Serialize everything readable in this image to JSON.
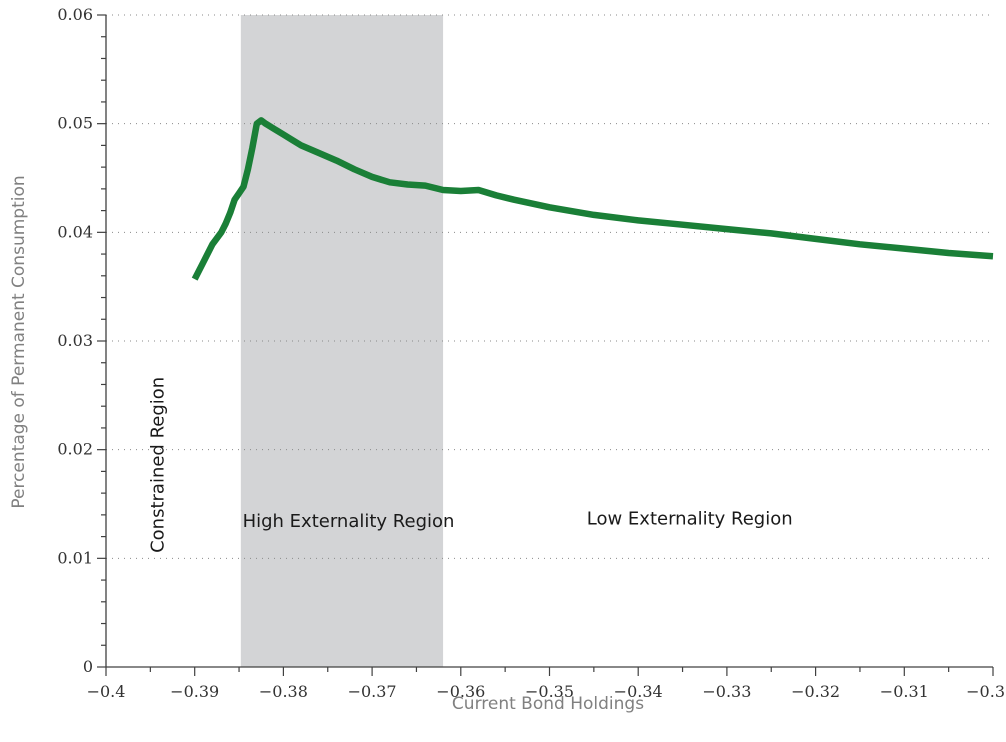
{
  "chart_data": {
    "type": "line",
    "title": "",
    "xlabel": "Current Bond Holdings",
    "ylabel": "Percentage of Permanent Consumption",
    "xlim": [
      -0.4,
      -0.3
    ],
    "ylim": [
      0,
      0.06
    ],
    "x_ticks": [
      -0.4,
      -0.39,
      -0.38,
      -0.37,
      -0.36,
      -0.35,
      -0.34,
      -0.33,
      -0.32,
      -0.31,
      -0.3
    ],
    "x_tick_labels": [
      "−0.4",
      "−0.39",
      "−0.38",
      "−0.37",
      "−0.36",
      "−0.35",
      "−0.34",
      "−0.33",
      "−0.32",
      "−0.31",
      "−0.3"
    ],
    "y_ticks": [
      0,
      0.01,
      0.02,
      0.03,
      0.04,
      0.05,
      0.06
    ],
    "y_tick_labels": [
      "0",
      "0.01",
      "0.02",
      "0.03",
      "0.04",
      "0.05",
      "0.06"
    ],
    "grid": "horizontal dotted",
    "shaded_region": {
      "x_start": -0.3848,
      "x_end": -0.362,
      "color": "#d3d4d6"
    },
    "annotations": [
      {
        "text": "Constrained Region",
        "x": -0.3935,
        "y": 0.0105,
        "rotation": -90
      },
      {
        "text": "High Externality Region",
        "x": -0.3846,
        "y": 0.0129,
        "rotation": 0
      },
      {
        "text": "Low Externality Region",
        "x": -0.3458,
        "y": 0.0131,
        "rotation": 0
      }
    ],
    "series": [
      {
        "color": "#1a7f37",
        "x": [
          -0.39,
          -0.389,
          -0.388,
          -0.387,
          -0.3865,
          -0.386,
          -0.3855,
          -0.385,
          -0.3845,
          -0.384,
          -0.3835,
          -0.383,
          -0.3825,
          -0.382,
          -0.381,
          -0.38,
          -0.379,
          -0.378,
          -0.376,
          -0.374,
          -0.372,
          -0.37,
          -0.368,
          -0.366,
          -0.364,
          -0.362,
          -0.36,
          -0.358,
          -0.356,
          -0.354,
          -0.35,
          -0.345,
          -0.34,
          -0.335,
          -0.33,
          -0.325,
          -0.32,
          -0.315,
          -0.31,
          -0.305,
          -0.3
        ],
        "y": [
          0.0357,
          0.0373,
          0.0389,
          0.04,
          0.0408,
          0.0418,
          0.043,
          0.0436,
          0.0442,
          0.0458,
          0.0478,
          0.05,
          0.0503,
          0.05,
          0.0495,
          0.049,
          0.0485,
          0.048,
          0.0473,
          0.0466,
          0.0458,
          0.0451,
          0.0446,
          0.0444,
          0.0443,
          0.0439,
          0.0438,
          0.0439,
          0.0434,
          0.043,
          0.0423,
          0.0416,
          0.0411,
          0.0407,
          0.0403,
          0.0399,
          0.0394,
          0.0389,
          0.0385,
          0.0381,
          0.0378
        ]
      }
    ]
  }
}
